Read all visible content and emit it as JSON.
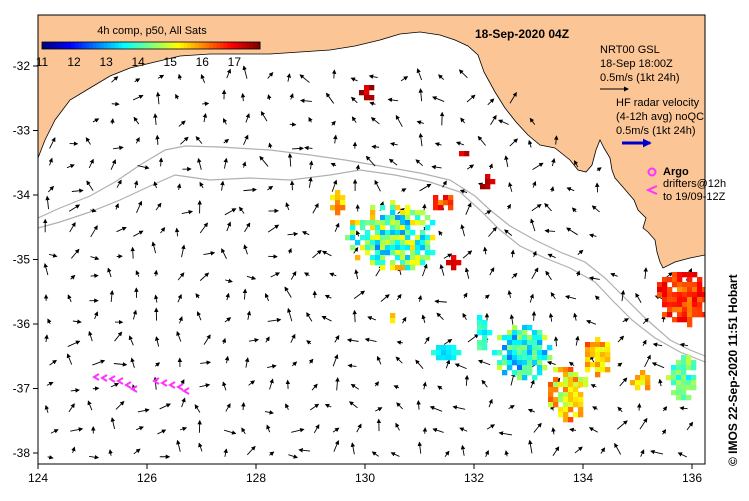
{
  "map": {
    "timestamp": "18-Sep-2020 04Z",
    "x_ticks": [
      "124",
      "126",
      "128",
      "130",
      "132",
      "134",
      "136"
    ],
    "y_ticks": [
      "-32",
      "-33",
      "-34",
      "-35",
      "-36",
      "-37",
      "-38"
    ],
    "colors": {
      "land": "#fbc595",
      "ocean": "#ffffff",
      "isobath": "#b0b0b0",
      "argo": "#ff33ff",
      "hf_radar": "#0000cc"
    }
  },
  "colorbar": {
    "title": "4h comp, p50, All Sats",
    "ticks": [
      "11",
      "12",
      "13",
      "14",
      "15",
      "16",
      "17"
    ],
    "range": [
      11,
      17.8
    ],
    "colormap": "jet"
  },
  "legend": {
    "gsl_title": "NRT00 GSL",
    "gsl_time": "18-Sep 18:00Z",
    "gsl_scale": "0.5m/s (1kt 24h)",
    "hf_title": "HF radar velocity",
    "hf_avg": "(4-12h avg) noQC",
    "hf_scale": "0.5m/s (1kt 24h)",
    "argo_label": "Argo",
    "drifters_label": "drifters@12h",
    "drifters_to": "to 19/09-12Z"
  },
  "credit": "© IMOS 22-Sep-2020 11:51 Hobart"
}
